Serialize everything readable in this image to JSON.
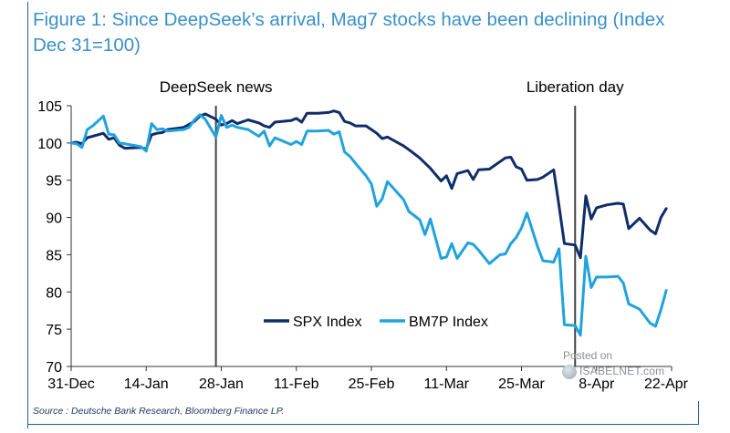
{
  "title": "Figure 1: Since DeepSeek’s arrival, Mag7 stocks have been declining (Index Dec 31=100)",
  "source": "Source : Deutsche Bank Research, Bloomberg Finance LP.",
  "watermark": {
    "posted": "Posted on",
    "site": "ISABELNET.com"
  },
  "colors": {
    "spx": "#0f2d6b",
    "bm7p": "#1fa3dd",
    "event_line": "#444444",
    "title": "#3a8fc9"
  },
  "chart_data": {
    "type": "line",
    "title": "Figure 1: Since DeepSeek’s arrival, Mag7 stocks have been declining (Index Dec 31=100)",
    "xlabel": "",
    "ylabel": "",
    "ylim": [
      70,
      105
    ],
    "yticks": [
      70,
      75,
      80,
      85,
      90,
      95,
      100,
      105
    ],
    "xlim": [
      0,
      112
    ],
    "xticks": [
      {
        "label": "31-Dec",
        "day": 0
      },
      {
        "label": "14-Jan",
        "day": 14
      },
      {
        "label": "28-Jan",
        "day": 28
      },
      {
        "label": "11-Feb",
        "day": 42
      },
      {
        "label": "25-Feb",
        "day": 56
      },
      {
        "label": "11-Mar",
        "day": 70
      },
      {
        "label": "25-Mar",
        "day": 84
      },
      {
        "label": "8-Apr",
        "day": 98
      },
      {
        "label": "22-Apr",
        "day": 112
      }
    ],
    "legend": {
      "position": "bottom-center"
    },
    "annotations": [
      {
        "label": "DeepSeek news",
        "day": 27
      },
      {
        "label": "Liberation day",
        "day": 94
      }
    ],
    "series": [
      {
        "name": "SPX Index",
        "key": "spx",
        "points": [
          [
            0,
            100
          ],
          [
            1,
            100.1
          ],
          [
            2,
            99.9
          ],
          [
            3,
            100.7
          ],
          [
            4,
            100.9
          ],
          [
            6,
            101.3
          ],
          [
            7,
            100.5
          ],
          [
            8,
            100.7
          ],
          [
            9,
            99.7
          ],
          [
            10,
            99.3
          ],
          [
            13,
            99.4
          ],
          [
            14,
            99.2
          ],
          [
            15,
            101.1
          ],
          [
            16,
            101.3
          ],
          [
            17,
            101.4
          ],
          [
            18,
            101.8
          ],
          [
            21,
            102.1
          ],
          [
            22,
            102.5
          ],
          [
            23,
            102.9
          ],
          [
            24,
            103.6
          ],
          [
            25,
            103.9
          ],
          [
            27,
            103.2
          ],
          [
            28,
            102.4
          ],
          [
            29,
            102.6
          ],
          [
            30,
            103
          ],
          [
            31,
            102.6
          ],
          [
            33,
            103.1
          ],
          [
            35,
            102.7
          ],
          [
            36,
            102.3
          ],
          [
            37,
            102.1
          ],
          [
            38,
            102.8
          ],
          [
            41,
            103
          ],
          [
            42,
            103.3
          ],
          [
            43,
            102.8
          ],
          [
            44,
            104
          ],
          [
            46,
            104
          ],
          [
            48,
            104.1
          ],
          [
            49,
            104.3
          ],
          [
            50,
            104.1
          ],
          [
            51,
            102.9
          ],
          [
            52,
            102.7
          ],
          [
            53,
            102.3
          ],
          [
            55,
            102.3
          ],
          [
            56,
            101.8
          ],
          [
            57,
            101.3
          ],
          [
            58,
            100.6
          ],
          [
            59,
            100.8
          ],
          [
            62,
            99.6
          ],
          [
            63,
            99.1
          ],
          [
            65,
            98
          ],
          [
            66,
            97.3
          ],
          [
            67,
            96.6
          ],
          [
            69,
            94.9
          ],
          [
            70,
            95.6
          ],
          [
            71,
            93.9
          ],
          [
            72,
            95.9
          ],
          [
            74,
            96.3
          ],
          [
            75,
            95.1
          ],
          [
            76,
            96.4
          ],
          [
            78,
            96.5
          ],
          [
            80,
            97.5
          ],
          [
            81,
            98
          ],
          [
            82,
            98.1
          ],
          [
            83,
            96.8
          ],
          [
            84,
            96.5
          ],
          [
            85,
            95
          ],
          [
            87,
            95.1
          ],
          [
            88,
            95.4
          ],
          [
            90,
            96.4
          ],
          [
            91,
            91.6
          ],
          [
            92,
            86.5
          ],
          [
            94,
            86.3
          ],
          [
            95,
            84.6
          ],
          [
            96,
            92.9
          ],
          [
            97,
            89.8
          ],
          [
            98,
            91.3
          ],
          [
            100,
            91.7
          ],
          [
            102,
            91.9
          ],
          [
            103,
            91.8
          ],
          [
            104,
            88.5
          ],
          [
            106,
            89.9
          ],
          [
            108,
            88.3
          ],
          [
            109,
            87.8
          ],
          [
            110,
            90
          ],
          [
            111,
            91.2
          ]
        ]
      },
      {
        "name": "BM7P Index",
        "key": "bm7p",
        "points": [
          [
            0,
            100
          ],
          [
            1,
            99.9
          ],
          [
            2,
            99.4
          ],
          [
            3,
            101.8
          ],
          [
            4,
            102.3
          ],
          [
            6,
            103.6
          ],
          [
            7,
            101.2
          ],
          [
            8,
            101.1
          ],
          [
            9,
            100
          ],
          [
            10,
            99.9
          ],
          [
            13,
            99.5
          ],
          [
            14,
            98.9
          ],
          [
            15,
            102.6
          ],
          [
            16,
            101.8
          ],
          [
            17,
            101.9
          ],
          [
            18,
            101.6
          ],
          [
            21,
            101.8
          ],
          [
            22,
            102.1
          ],
          [
            23,
            103.1
          ],
          [
            24,
            103.8
          ],
          [
            25,
            103.2
          ],
          [
            27,
            100.8
          ],
          [
            28,
            103.7
          ],
          [
            29,
            102.1
          ],
          [
            30,
            102.4
          ],
          [
            31,
            102.1
          ],
          [
            33,
            101.8
          ],
          [
            35,
            100.9
          ],
          [
            36,
            101.6
          ],
          [
            37,
            99.6
          ],
          [
            38,
            100.7
          ],
          [
            41,
            99.8
          ],
          [
            42,
            100.2
          ],
          [
            43,
            99.8
          ],
          [
            44,
            101.6
          ],
          [
            46,
            101.6
          ],
          [
            48,
            101.7
          ],
          [
            49,
            101.2
          ],
          [
            50,
            101.5
          ],
          [
            51,
            98.8
          ],
          [
            52,
            98.2
          ],
          [
            53,
            97.3
          ],
          [
            55,
            95.6
          ],
          [
            56,
            94.5
          ],
          [
            57,
            91.5
          ],
          [
            58,
            92.5
          ],
          [
            59,
            94.8
          ],
          [
            62,
            92.4
          ],
          [
            63,
            90.8
          ],
          [
            65,
            89.7
          ],
          [
            66,
            87.7
          ],
          [
            67,
            89.8
          ],
          [
            69,
            84.5
          ],
          [
            70,
            84.7
          ],
          [
            71,
            86.5
          ],
          [
            72,
            84.5
          ],
          [
            74,
            86.6
          ],
          [
            75,
            86.4
          ],
          [
            76,
            85.6
          ],
          [
            78,
            83.8
          ],
          [
            80,
            85
          ],
          [
            81,
            85.1
          ],
          [
            82,
            86.5
          ],
          [
            83,
            87.3
          ],
          [
            84,
            88.6
          ],
          [
            85,
            90.6
          ],
          [
            87,
            86.1
          ],
          [
            88,
            84.2
          ],
          [
            90,
            84
          ],
          [
            91,
            85.8
          ],
          [
            92,
            75.6
          ],
          [
            94,
            75.5
          ],
          [
            95,
            74.2
          ],
          [
            96,
            84.8
          ],
          [
            97,
            80.6
          ],
          [
            98,
            82
          ],
          [
            100,
            82
          ],
          [
            102,
            82.1
          ],
          [
            103,
            81.2
          ],
          [
            104,
            78.4
          ],
          [
            106,
            77.7
          ],
          [
            108,
            75.8
          ],
          [
            109,
            75.4
          ],
          [
            110,
            77.6
          ],
          [
            111,
            80.2
          ]
        ]
      }
    ]
  }
}
